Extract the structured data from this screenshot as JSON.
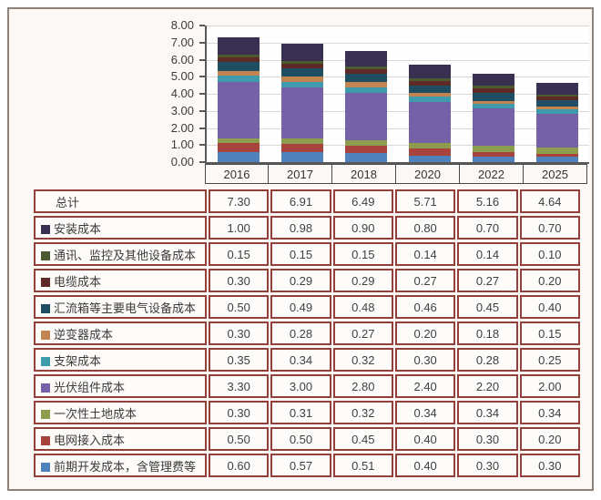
{
  "styles": {
    "frame_border": "#8d8279",
    "table_border": "#93403a",
    "axis_color": "#595959",
    "grid_color": "#dcd7d4"
  },
  "chart_data": {
    "type": "bar",
    "stacked": true,
    "title": "",
    "xlabel": "",
    "ylabel": "",
    "categories": [
      "2016",
      "2017",
      "2018",
      "2020",
      "2022",
      "2025"
    ],
    "series": [
      {
        "name": "安装成本",
        "color": "#393051",
        "values": [
          1.0,
          0.98,
          0.9,
          0.8,
          0.7,
          0.7
        ]
      },
      {
        "name": "通讯、监控及其他设备成本",
        "color": "#4d5a2f",
        "values": [
          0.15,
          0.15,
          0.15,
          0.14,
          0.14,
          0.1
        ]
      },
      {
        "name": "电缆成本",
        "color": "#5e2a26",
        "values": [
          0.3,
          0.29,
          0.29,
          0.27,
          0.27,
          0.2
        ]
      },
      {
        "name": "汇流箱等主要电气设备成本",
        "color": "#1f4e63",
        "values": [
          0.5,
          0.49,
          0.48,
          0.46,
          0.45,
          0.4
        ]
      },
      {
        "name": "逆变器成本",
        "color": "#c08550",
        "values": [
          0.3,
          0.28,
          0.27,
          0.2,
          0.18,
          0.15
        ]
      },
      {
        "name": "支架成本",
        "color": "#3f9bab",
        "values": [
          0.35,
          0.34,
          0.32,
          0.3,
          0.28,
          0.25
        ]
      },
      {
        "name": "光伏组件成本",
        "color": "#7561a5",
        "values": [
          3.3,
          3.0,
          2.8,
          2.4,
          2.2,
          2.0
        ]
      },
      {
        "name": "一次性土地成本",
        "color": "#8c9d4d",
        "values": [
          0.3,
          0.31,
          0.32,
          0.34,
          0.34,
          0.34
        ]
      },
      {
        "name": "电网接入成本",
        "color": "#a8423d",
        "values": [
          0.5,
          0.5,
          0.45,
          0.4,
          0.3,
          0.2
        ]
      },
      {
        "name": "前期开发成本，含管理费等",
        "color": "#4f81bd",
        "values": [
          0.6,
          0.57,
          0.51,
          0.4,
          0.3,
          0.3
        ]
      }
    ],
    "totals": [
      7.3,
      6.91,
      6.49,
      5.71,
      5.16,
      4.64
    ],
    "ylim": [
      0,
      8
    ],
    "ytick_step": 1,
    "ytick_format": "0.00",
    "grid": true,
    "legend_position": "in-table-below"
  },
  "table": {
    "columns": [
      "2016",
      "2017",
      "2018",
      "2020",
      "2022",
      "2025"
    ],
    "rows": [
      {
        "label": "总计",
        "color": null,
        "values": [
          "7.30",
          "6.91",
          "6.49",
          "5.71",
          "5.16",
          "4.64"
        ]
      },
      {
        "label": "安装成本",
        "color": "#393051",
        "values": [
          "1.00",
          "0.98",
          "0.90",
          "0.80",
          "0.70",
          "0.70"
        ]
      },
      {
        "label": "通讯、监控及其他设备成本",
        "color": "#4d5a2f",
        "values": [
          "0.15",
          "0.15",
          "0.15",
          "0.14",
          "0.14",
          "0.10"
        ]
      },
      {
        "label": "电缆成本",
        "color": "#5e2a26",
        "values": [
          "0.30",
          "0.29",
          "0.29",
          "0.27",
          "0.27",
          "0.20"
        ]
      },
      {
        "label": "汇流箱等主要电气设备成本",
        "color": "#1f4e63",
        "values": [
          "0.50",
          "0.49",
          "0.48",
          "0.46",
          "0.45",
          "0.40"
        ]
      },
      {
        "label": "逆变器成本",
        "color": "#c08550",
        "values": [
          "0.30",
          "0.28",
          "0.27",
          "0.20",
          "0.18",
          "0.15"
        ]
      },
      {
        "label": "支架成本",
        "color": "#3f9bab",
        "values": [
          "0.35",
          "0.34",
          "0.32",
          "0.30",
          "0.28",
          "0.25"
        ]
      },
      {
        "label": "光伏组件成本",
        "color": "#7561a5",
        "values": [
          "3.30",
          "3.00",
          "2.80",
          "2.40",
          "2.20",
          "2.00"
        ]
      },
      {
        "label": "一次性土地成本",
        "color": "#8c9d4d",
        "values": [
          "0.30",
          "0.31",
          "0.32",
          "0.34",
          "0.34",
          "0.34"
        ]
      },
      {
        "label": "电网接入成本",
        "color": "#a8423d",
        "values": [
          "0.50",
          "0.50",
          "0.45",
          "0.40",
          "0.30",
          "0.20"
        ]
      },
      {
        "label": "前期开发成本，含管理费等",
        "color": "#4f81bd",
        "values": [
          "0.60",
          "0.57",
          "0.51",
          "0.40",
          "0.30",
          "0.30"
        ]
      }
    ]
  }
}
